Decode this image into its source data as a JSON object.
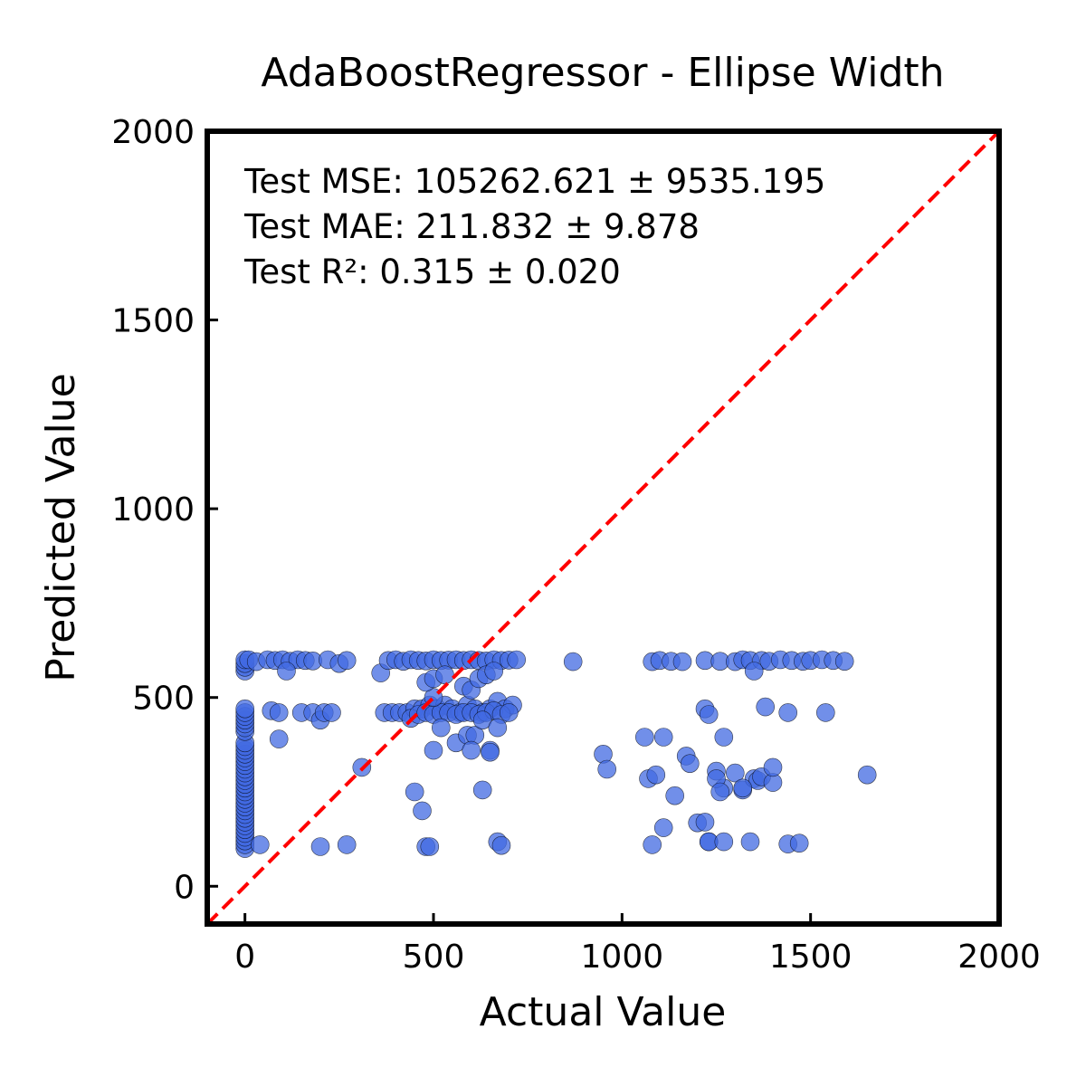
{
  "chart_data": {
    "type": "scatter",
    "title": "AdaBoostRegressor - Ellipse Width",
    "xlabel": "Actual Value",
    "ylabel": "Predicted Value",
    "xlim": [
      -100,
      2000
    ],
    "ylim": [
      -100,
      2000
    ],
    "xticks": [
      "0",
      "500",
      "1000",
      "1500",
      "2000"
    ],
    "yticks": [
      "0",
      "500",
      "1000",
      "1500",
      "2000"
    ],
    "grid": false,
    "annotations": [
      "Test MSE: 105262.621 ± 9535.195",
      "Test MAE: 211.832 ± 9.878",
      "Test R²: 0.315 ± 0.020"
    ],
    "reference_line": {
      "style": "dashed",
      "color": "#ff0000",
      "from": [
        -100,
        -100
      ],
      "to": [
        2000,
        2000
      ]
    },
    "marker_color": "#4169e1",
    "x": [
      0,
      0,
      0,
      0,
      0,
      0,
      0,
      0,
      0,
      0,
      0,
      0,
      0,
      0,
      0,
      0,
      0,
      0,
      0,
      0,
      0,
      0,
      0,
      0,
      0,
      0,
      0,
      0,
      0,
      0,
      0,
      0,
      0,
      0,
      0,
      0,
      0,
      0,
      0,
      0,
      10,
      30,
      60,
      80,
      100,
      120,
      140,
      160,
      180,
      220,
      250,
      270,
      70,
      90,
      150,
      180,
      200,
      210,
      230,
      90,
      110,
      40,
      200,
      270,
      310,
      360,
      380,
      400,
      420,
      440,
      460,
      480,
      500,
      520,
      540,
      560,
      580,
      600,
      620,
      640,
      660,
      680,
      700,
      720,
      370,
      390,
      410,
      430,
      450,
      470,
      490,
      510,
      530,
      550,
      570,
      590,
      610,
      630,
      650,
      670,
      690,
      710,
      440,
      460,
      480,
      500,
      520,
      540,
      560,
      580,
      600,
      620,
      640,
      660,
      680,
      700,
      500,
      520,
      560,
      590,
      610,
      630,
      650,
      670,
      480,
      500,
      530,
      580,
      600,
      620,
      640,
      660,
      600,
      650,
      450,
      500,
      470,
      630,
      480,
      490,
      670,
      680,
      870,
      1080,
      1100,
      1130,
      1160,
      1220,
      1260,
      1300,
      1320,
      1340,
      1370,
      1390,
      1420,
      1450,
      1480,
      1500,
      1530,
      1560,
      1590,
      1350,
      1380,
      1440,
      1540,
      1060,
      1110,
      1170,
      1180,
      1220,
      1230,
      1270,
      950,
      960,
      1070,
      1090,
      1200,
      1250,
      1270,
      1300,
      1320,
      1350,
      1360,
      1370,
      1400,
      1400,
      1650,
      1140,
      1250,
      1260,
      1320,
      1110,
      1220,
      1230,
      1080,
      1230,
      1270,
      1340,
      1440,
      1470
    ],
    "y": [
      100,
      110,
      120,
      130,
      140,
      150,
      160,
      170,
      180,
      190,
      200,
      210,
      220,
      230,
      240,
      250,
      260,
      270,
      280,
      290,
      300,
      310,
      320,
      330,
      340,
      350,
      360,
      370,
      380,
      410,
      420,
      430,
      440,
      450,
      460,
      470,
      570,
      580,
      590,
      600,
      600,
      595,
      600,
      598,
      600,
      596,
      600,
      598,
      597,
      600,
      590,
      598,
      465,
      460,
      460,
      460,
      440,
      460,
      460,
      390,
      570,
      110,
      105,
      110,
      315,
      565,
      598,
      600,
      596,
      600,
      598,
      597,
      600,
      598,
      599,
      600,
      598,
      600,
      598,
      597,
      600,
      598,
      599,
      600,
      460,
      460,
      460,
      460,
      470,
      470,
      480,
      470,
      480,
      470,
      460,
      480,
      470,
      460,
      470,
      490,
      470,
      480,
      445,
      455,
      460,
      455,
      460,
      460,
      455,
      460,
      460,
      455,
      460,
      465,
      455,
      460,
      500,
      420,
      380,
      400,
      400,
      440,
      360,
      420,
      540,
      550,
      560,
      530,
      520,
      550,
      560,
      570,
      360,
      355,
      250,
      360,
      200,
      255,
      105,
      105,
      118,
      108,
      595,
      595,
      598,
      596,
      595,
      598,
      596,
      595,
      600,
      598,
      598,
      596,
      600,
      598,
      596,
      598,
      600,
      598,
      596,
      570,
      475,
      460,
      460,
      395,
      395,
      345,
      325,
      470,
      455,
      395,
      350,
      310,
      285,
      295,
      168,
      305,
      260,
      300,
      255,
      285,
      280,
      290,
      275,
      315,
      295,
      240,
      285,
      250,
      260,
      155,
      170,
      118,
      110,
      118,
      118,
      118,
      112,
      114
    ]
  }
}
